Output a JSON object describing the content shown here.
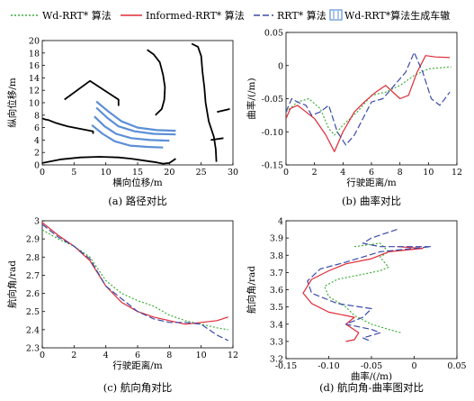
{
  "legend": {
    "items": [
      {
        "label": "Wd-RRT* 算法",
        "color": "#3fae3a",
        "style": "dotted"
      },
      {
        "label": "Informed-RRT* 算法",
        "color": "#e02a37",
        "style": "solid"
      },
      {
        "label": "RRT* 算法",
        "color": "#3b4aa8",
        "style": "dashed"
      },
      {
        "label": "Wd-RRT*算法生成车辙",
        "color": "#5b8fd6",
        "style": "box"
      }
    ]
  },
  "chart_data": [
    {
      "id": "a",
      "type": "scatter",
      "caption": "(a) 路径对比",
      "xlabel": "横向位移/m",
      "ylabel": "纵向位移/m",
      "xlim": [
        0,
        30
      ],
      "ylim": [
        0,
        20
      ],
      "xticks": [
        0,
        5,
        10,
        15,
        20,
        25,
        30
      ],
      "yticks": [
        0,
        2,
        4,
        6,
        8,
        10,
        12,
        14,
        16,
        18,
        20
      ],
      "obstacles": [
        {
          "name": "left-boundary",
          "points": [
            [
              0,
              7.5
            ],
            [
              0.5,
              7.3
            ],
            [
              1,
              7.2
            ],
            [
              2,
              6.8
            ],
            [
              3,
              6.5
            ],
            [
              4,
              6.2
            ],
            [
              5,
              6.0
            ],
            [
              6,
              5.8
            ],
            [
              7,
              5.6
            ],
            [
              8,
              5.4
            ],
            [
              8,
              5.0
            ]
          ]
        },
        {
          "name": "parked-slot",
          "points": [
            [
              3.5,
              10.5
            ],
            [
              7.5,
              13.5
            ],
            [
              12,
              10.5
            ],
            [
              12,
              9.5
            ]
          ]
        },
        {
          "name": "center-curb",
          "points": [
            [
              16.5,
              18.5
            ],
            [
              17.5,
              17.8
            ],
            [
              18.5,
              16.5
            ],
            [
              19.0,
              14.5
            ],
            [
              19.3,
              12.5
            ],
            [
              19.2,
              10.5
            ],
            [
              18.8,
              9.0
            ],
            [
              17.8,
              8.0
            ]
          ]
        },
        {
          "name": "bottom-boundary",
          "points": [
            [
              0,
              0.3
            ],
            [
              3,
              0.9
            ],
            [
              6,
              1.2
            ],
            [
              9,
              1.3
            ],
            [
              12,
              1.2
            ],
            [
              14,
              1.0
            ],
            [
              16,
              0.7
            ],
            [
              18,
              0.4
            ],
            [
              19,
              0.2
            ],
            [
              20,
              0.3
            ],
            [
              21,
              1.0
            ]
          ]
        },
        {
          "name": "right-boundary",
          "points": [
            [
              23.5,
              19.5
            ],
            [
              24.5,
              19.0
            ],
            [
              25.0,
              17.5
            ],
            [
              25.2,
              15
            ],
            [
              25.5,
              12.5
            ],
            [
              25.7,
              10
            ],
            [
              26.2,
              7
            ],
            [
              27.0,
              4.5
            ],
            [
              27.3,
              2.5
            ],
            [
              27.4,
              0.5
            ]
          ]
        },
        {
          "name": "right-lower-curb",
          "points": [
            [
              26.5,
              4.0
            ],
            [
              28.5,
              4.3
            ]
          ]
        },
        {
          "name": "right-mid-curb",
          "points": [
            [
              27.5,
              8.5
            ],
            [
              29.5,
              9.0
            ]
          ]
        }
      ],
      "series": [
        {
          "color": "#5b8fd6",
          "points": [
            [
              8.5,
              10.2
            ],
            [
              10.5,
              8.5
            ],
            [
              12.5,
              7.0
            ],
            [
              15,
              6.0
            ],
            [
              18,
              5.6
            ],
            [
              21,
              5.5
            ]
          ]
        },
        {
          "color": "#5b8fd6",
          "points": [
            [
              8.5,
              9.2
            ],
            [
              10.2,
              7.6
            ],
            [
              12.0,
              6.2
            ],
            [
              14.5,
              5.4
            ],
            [
              17.5,
              5.0
            ],
            [
              21,
              4.9
            ]
          ]
        },
        {
          "color": "#5b8fd6",
          "points": [
            [
              8.2,
              7.8
            ],
            [
              9.8,
              6.2
            ],
            [
              11.6,
              5.0
            ],
            [
              14,
              4.3
            ],
            [
              17,
              4.0
            ],
            [
              20,
              3.9
            ]
          ]
        },
        {
          "color": "#5b8fd6",
          "points": [
            [
              7.8,
              6.4
            ],
            [
              9.5,
              5.0
            ],
            [
              11.4,
              3.8
            ],
            [
              13.8,
              3.1
            ],
            [
              16.5,
              2.9
            ],
            [
              19,
              2.8
            ]
          ]
        }
      ]
    },
    {
      "id": "b",
      "type": "line",
      "caption": "(b) 曲率对比",
      "xlabel": "行驶距离/m",
      "ylabel": "曲率/(/m)",
      "xlim": [
        0,
        12
      ],
      "ylim": [
        -0.15,
        0.05
      ],
      "xticks": [
        0,
        2,
        4,
        6,
        8,
        10,
        12
      ],
      "yticks": [
        0.05,
        0,
        -0.05,
        -0.1,
        -0.15
      ],
      "ytick_labels": [
        "0.05",
        "0",
        "-0.05",
        "-0.10",
        "-0.15"
      ],
      "series": [
        {
          "color": "#3fae3a",
          "style": "dotted",
          "points": [
            [
              0,
              -0.07
            ],
            [
              0.8,
              -0.055
            ],
            [
              1.6,
              -0.05
            ],
            [
              2.4,
              -0.065
            ],
            [
              3.0,
              -0.095
            ],
            [
              3.4,
              -0.105
            ],
            [
              4.0,
              -0.09
            ],
            [
              5.0,
              -0.07
            ],
            [
              6.0,
              -0.045
            ],
            [
              7.0,
              -0.04
            ],
            [
              8.0,
              -0.03
            ],
            [
              9.0,
              -0.015
            ],
            [
              10.0,
              -0.005
            ],
            [
              11.0,
              -0.003
            ],
            [
              11.6,
              -0.002
            ]
          ]
        },
        {
          "color": "#e02a37",
          "style": "solid",
          "points": [
            [
              0,
              -0.08
            ],
            [
              0.3,
              -0.065
            ],
            [
              0.8,
              -0.06
            ],
            [
              1.4,
              -0.07
            ],
            [
              2.0,
              -0.08
            ],
            [
              2.8,
              -0.105
            ],
            [
              3.4,
              -0.13
            ],
            [
              4.0,
              -0.1
            ],
            [
              4.8,
              -0.07
            ],
            [
              5.5,
              -0.055
            ],
            [
              6.3,
              -0.04
            ],
            [
              7.0,
              -0.03
            ],
            [
              8.0,
              -0.05
            ],
            [
              8.6,
              -0.045
            ],
            [
              9.2,
              -0.01
            ],
            [
              9.8,
              0.015
            ],
            [
              10.5,
              0.013
            ],
            [
              11.5,
              0.012
            ]
          ]
        },
        {
          "color": "#3b4aa8",
          "style": "dashed",
          "points": [
            [
              0,
              -0.07
            ],
            [
              0.4,
              -0.05
            ],
            [
              0.8,
              -0.055
            ],
            [
              1.4,
              -0.06
            ],
            [
              1.8,
              -0.075
            ],
            [
              2.4,
              -0.07
            ],
            [
              3.0,
              -0.06
            ],
            [
              3.6,
              -0.1
            ],
            [
              4.2,
              -0.12
            ],
            [
              4.8,
              -0.105
            ],
            [
              5.4,
              -0.08
            ],
            [
              6.0,
              -0.055
            ],
            [
              6.8,
              -0.05
            ],
            [
              7.6,
              -0.03
            ],
            [
              8.4,
              -0.01
            ],
            [
              9.0,
              0.02
            ],
            [
              9.6,
              -0.01
            ],
            [
              10.2,
              -0.05
            ],
            [
              10.8,
              -0.06
            ],
            [
              11.5,
              -0.04
            ]
          ]
        }
      ]
    },
    {
      "id": "c",
      "type": "line",
      "caption": "(c) 航向角对比",
      "xlabel": "行驶距离/m",
      "ylabel": "航向角/rad",
      "xlim": [
        0,
        12
      ],
      "ylim": [
        2.3,
        3.0
      ],
      "xticks": [
        0,
        2,
        4,
        6,
        8,
        10,
        12
      ],
      "yticks": [
        3.0,
        2.9,
        2.8,
        2.7,
        2.6,
        2.5,
        2.4,
        2.3
      ],
      "series": [
        {
          "color": "#3fae3a",
          "style": "dotted",
          "points": [
            [
              0,
              2.95
            ],
            [
              1,
              2.9
            ],
            [
              2,
              2.86
            ],
            [
              3,
              2.8
            ],
            [
              4,
              2.67
            ],
            [
              5,
              2.6
            ],
            [
              6,
              2.56
            ],
            [
              7,
              2.53
            ],
            [
              8,
              2.48
            ],
            [
              9,
              2.45
            ],
            [
              10,
              2.43
            ],
            [
              11,
              2.41
            ],
            [
              11.7,
              2.4
            ]
          ]
        },
        {
          "color": "#e02a37",
          "style": "solid",
          "points": [
            [
              0,
              2.99
            ],
            [
              1,
              2.92
            ],
            [
              2,
              2.86
            ],
            [
              3,
              2.78
            ],
            [
              4,
              2.64
            ],
            [
              5,
              2.55
            ],
            [
              6,
              2.5
            ],
            [
              7,
              2.47
            ],
            [
              8,
              2.45
            ],
            [
              9,
              2.43
            ],
            [
              10,
              2.44
            ],
            [
              11,
              2.45
            ],
            [
              11.7,
              2.47
            ]
          ]
        },
        {
          "color": "#3b4aa8",
          "style": "dashed",
          "points": [
            [
              0,
              2.98
            ],
            [
              1,
              2.91
            ],
            [
              2,
              2.86
            ],
            [
              3,
              2.79
            ],
            [
              4,
              2.64
            ],
            [
              5,
              2.57
            ],
            [
              6,
              2.5
            ],
            [
              7,
              2.46
            ],
            [
              8,
              2.44
            ],
            [
              9,
              2.44
            ],
            [
              10,
              2.43
            ],
            [
              11,
              2.37
            ],
            [
              11.7,
              2.34
            ]
          ]
        }
      ]
    },
    {
      "id": "d",
      "type": "line",
      "caption": "(d) 航向角-曲率图对比",
      "xlabel": "曲率/(/m)",
      "ylabel": "航向角/rad",
      "xlim": [
        -0.15,
        0.05
      ],
      "ylim": [
        3.2,
        4.0
      ],
      "xticks": [
        -0.15,
        -0.1,
        -0.05,
        0,
        0.05
      ],
      "xtick_labels": [
        "-0.15",
        "-0.10",
        "-0.05",
        "0",
        "0.05"
      ],
      "yticks": [
        4.0,
        3.9,
        3.8,
        3.7,
        3.6,
        3.5,
        3.4,
        3.3,
        3.2
      ],
      "series": [
        {
          "color": "#3fae3a",
          "style": "dotted",
          "points": [
            [
              -0.07,
              3.85
            ],
            [
              -0.04,
              3.87
            ],
            [
              -0.03,
              3.82
            ],
            [
              -0.04,
              3.79
            ],
            [
              -0.03,
              3.73
            ],
            [
              -0.04,
              3.71
            ],
            [
              -0.06,
              3.69
            ],
            [
              -0.09,
              3.66
            ],
            [
              -0.105,
              3.62
            ],
            [
              -0.1,
              3.56
            ],
            [
              -0.08,
              3.5
            ],
            [
              -0.07,
              3.45
            ],
            [
              -0.05,
              3.4
            ],
            [
              -0.03,
              3.37
            ],
            [
              -0.015,
              3.35
            ]
          ]
        },
        {
          "color": "#e02a37",
          "style": "solid",
          "points": [
            [
              -0.02,
              3.85
            ],
            [
              0.01,
              3.84
            ],
            [
              -0.03,
              3.82
            ],
            [
              -0.04,
              3.8
            ],
            [
              -0.05,
              3.78
            ],
            [
              -0.08,
              3.75
            ],
            [
              -0.1,
              3.71
            ],
            [
              -0.12,
              3.66
            ],
            [
              -0.13,
              3.58
            ],
            [
              -0.12,
              3.52
            ],
            [
              -0.1,
              3.47
            ],
            [
              -0.07,
              3.44
            ],
            [
              -0.08,
              3.4
            ],
            [
              -0.065,
              3.35
            ],
            [
              -0.07,
              3.31
            ],
            [
              -0.08,
              3.3
            ]
          ]
        },
        {
          "color": "#3b4aa8",
          "style": "dashed",
          "points": [
            [
              -0.02,
              3.95
            ],
            [
              -0.05,
              3.9
            ],
            [
              -0.06,
              3.87
            ],
            [
              -0.04,
              3.85
            ],
            [
              0.02,
              3.85
            ],
            [
              -0.04,
              3.82
            ],
            [
              -0.06,
              3.79
            ],
            [
              -0.08,
              3.76
            ],
            [
              -0.11,
              3.72
            ],
            [
              -0.125,
              3.65
            ],
            [
              -0.12,
              3.58
            ],
            [
              -0.09,
              3.52
            ],
            [
              -0.05,
              3.49
            ],
            [
              -0.06,
              3.44
            ],
            [
              -0.08,
              3.4
            ],
            [
              -0.05,
              3.37
            ],
            [
              -0.04,
              3.35
            ],
            [
              -0.06,
              3.32
            ],
            [
              -0.05,
              3.3
            ]
          ]
        }
      ]
    }
  ]
}
